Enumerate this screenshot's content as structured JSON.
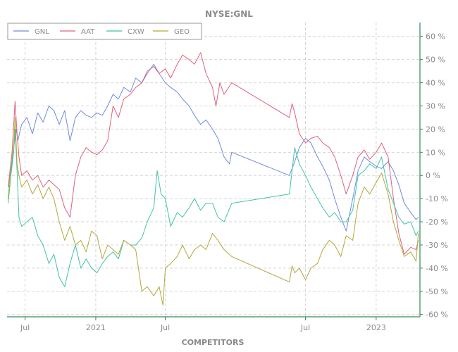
{
  "chart_data": {
    "type": "line",
    "title": "NYSE:GNL",
    "xlabel": "COMPETITORS",
    "ylabel": "",
    "ylim": [
      -61,
      66
    ],
    "y_unit": "%",
    "y_ticks": [
      60,
      50,
      40,
      30,
      20,
      10,
      0,
      -10,
      -20,
      -30,
      -40,
      -50,
      -60
    ],
    "y_tick_labels": [
      "60 %",
      "50 %",
      "40 %",
      "30 %",
      "20 %",
      "10 %",
      "0 %",
      "-10 %",
      "-20 %",
      "-30 %",
      "-40 %",
      "-50 %",
      "-60 %"
    ],
    "y_axis_side": "right",
    "x_range": [
      "2020-05-15",
      "2023-04-25"
    ],
    "x_ticks": [
      {
        "date": "2020-07-01",
        "label": "Jul"
      },
      {
        "date": "2021-01-01",
        "label": "2021"
      },
      {
        "date": "2021-07-01",
        "label": "Jul"
      },
      {
        "date": "2022-07-01",
        "label": "Jul"
      },
      {
        "date": "2023-01-01",
        "label": "2023"
      }
    ],
    "grid": true,
    "legend_position": "top-left",
    "series": [
      {
        "name": "GNL",
        "color": "#6f8ae0",
        "points": [
          [
            "2020-05-18",
            -5
          ],
          [
            "2020-05-25",
            2
          ],
          [
            "2020-06-01",
            12
          ],
          [
            "2020-06-08",
            20
          ],
          [
            "2020-06-12",
            15
          ],
          [
            "2020-06-22",
            22
          ],
          [
            "2020-07-06",
            25
          ],
          [
            "2020-07-20",
            18
          ],
          [
            "2020-08-03",
            27
          ],
          [
            "2020-08-17",
            23
          ],
          [
            "2020-09-01",
            30
          ],
          [
            "2020-09-14",
            28
          ],
          [
            "2020-09-28",
            22
          ],
          [
            "2020-10-12",
            28
          ],
          [
            "2020-10-26",
            15
          ],
          [
            "2020-11-09",
            25
          ],
          [
            "2020-11-23",
            28
          ],
          [
            "2020-12-07",
            26
          ],
          [
            "2020-12-21",
            25
          ],
          [
            "2021-01-04",
            27
          ],
          [
            "2021-01-18",
            26
          ],
          [
            "2021-02-01",
            30
          ],
          [
            "2021-02-15",
            35
          ],
          [
            "2021-03-01",
            33
          ],
          [
            "2021-03-15",
            38
          ],
          [
            "2021-04-01",
            36
          ],
          [
            "2021-04-15",
            42
          ],
          [
            "2021-05-01",
            40
          ],
          [
            "2021-05-15",
            44
          ],
          [
            "2021-06-01",
            48
          ],
          [
            "2021-06-15",
            44
          ],
          [
            "2021-07-01",
            40
          ],
          [
            "2021-07-15",
            38
          ],
          [
            "2021-08-01",
            36
          ],
          [
            "2021-08-15",
            33
          ],
          [
            "2021-09-01",
            30
          ],
          [
            "2021-09-15",
            26
          ],
          [
            "2021-10-01",
            22
          ],
          [
            "2021-10-15",
            24
          ],
          [
            "2021-11-01",
            20
          ],
          [
            "2021-11-15",
            16
          ],
          [
            "2021-12-01",
            8
          ],
          [
            "2021-12-15",
            5
          ],
          [
            "2021-12-21",
            10
          ],
          [
            "2022-05-20",
            0
          ],
          [
            "2022-06-01",
            5
          ],
          [
            "2022-06-15",
            12
          ],
          [
            "2022-07-01",
            16
          ],
          [
            "2022-07-15",
            14
          ],
          [
            "2022-08-01",
            8
          ],
          [
            "2022-08-15",
            4
          ],
          [
            "2022-09-01",
            -2
          ],
          [
            "2022-09-15",
            -10
          ],
          [
            "2022-10-01",
            -18
          ],
          [
            "2022-10-15",
            -24
          ],
          [
            "2022-11-01",
            -10
          ],
          [
            "2022-11-15",
            2
          ],
          [
            "2022-12-01",
            8
          ],
          [
            "2022-12-15",
            6
          ],
          [
            "2023-01-01",
            4
          ],
          [
            "2023-01-15",
            3
          ],
          [
            "2023-02-01",
            6
          ],
          [
            "2023-02-15",
            2
          ],
          [
            "2023-03-01",
            -4
          ],
          [
            "2023-03-15",
            -12
          ],
          [
            "2023-04-01",
            -16
          ],
          [
            "2023-04-15",
            -19
          ],
          [
            "2023-04-21",
            -18
          ]
        ]
      },
      {
        "name": "AAT",
        "color": "#e0607a",
        "points": [
          [
            "2020-05-18",
            -5
          ],
          [
            "2020-05-28",
            10
          ],
          [
            "2020-06-05",
            32
          ],
          [
            "2020-06-10",
            18
          ],
          [
            "2020-06-15",
            8
          ],
          [
            "2020-06-22",
            0
          ],
          [
            "2020-07-06",
            2
          ],
          [
            "2020-07-20",
            -2
          ],
          [
            "2020-08-03",
            0
          ],
          [
            "2020-08-17",
            -5
          ],
          [
            "2020-09-01",
            -2
          ],
          [
            "2020-09-14",
            -4
          ],
          [
            "2020-09-28",
            -6
          ],
          [
            "2020-10-12",
            -14
          ],
          [
            "2020-10-26",
            -18
          ],
          [
            "2020-11-09",
            0
          ],
          [
            "2020-11-23",
            8
          ],
          [
            "2020-12-07",
            12
          ],
          [
            "2020-12-21",
            10
          ],
          [
            "2021-01-04",
            9
          ],
          [
            "2021-01-18",
            11
          ],
          [
            "2021-02-01",
            15
          ],
          [
            "2021-02-15",
            30
          ],
          [
            "2021-03-01",
            25
          ],
          [
            "2021-03-15",
            33
          ],
          [
            "2021-04-01",
            35
          ],
          [
            "2021-04-15",
            38
          ],
          [
            "2021-05-01",
            40
          ],
          [
            "2021-05-15",
            45
          ],
          [
            "2021-06-01",
            47
          ],
          [
            "2021-06-15",
            44
          ],
          [
            "2021-07-01",
            46
          ],
          [
            "2021-07-15",
            42
          ],
          [
            "2021-08-01",
            48
          ],
          [
            "2021-08-15",
            52
          ],
          [
            "2021-09-01",
            50
          ],
          [
            "2021-09-15",
            48
          ],
          [
            "2021-10-01",
            53
          ],
          [
            "2021-10-15",
            44
          ],
          [
            "2021-11-01",
            38
          ],
          [
            "2021-11-10",
            30
          ],
          [
            "2021-11-20",
            40
          ],
          [
            "2021-12-01",
            35
          ],
          [
            "2021-12-21",
            40
          ],
          [
            "2022-05-20",
            25
          ],
          [
            "2022-05-27",
            31
          ],
          [
            "2022-06-03",
            27
          ],
          [
            "2022-06-15",
            18
          ],
          [
            "2022-07-01",
            14
          ],
          [
            "2022-07-15",
            16
          ],
          [
            "2022-08-01",
            17
          ],
          [
            "2022-08-15",
            14
          ],
          [
            "2022-09-01",
            12
          ],
          [
            "2022-09-15",
            8
          ],
          [
            "2022-10-01",
            0
          ],
          [
            "2022-10-15",
            -8
          ],
          [
            "2022-11-01",
            0
          ],
          [
            "2022-11-15",
            8
          ],
          [
            "2022-12-01",
            11
          ],
          [
            "2022-12-15",
            7
          ],
          [
            "2023-01-01",
            10
          ],
          [
            "2023-01-15",
            14
          ],
          [
            "2023-02-01",
            8
          ],
          [
            "2023-02-15",
            -10
          ],
          [
            "2023-03-01",
            -25
          ],
          [
            "2023-03-15",
            -34
          ],
          [
            "2023-04-01",
            -31
          ],
          [
            "2023-04-15",
            -32
          ],
          [
            "2023-04-21",
            -28
          ]
        ]
      },
      {
        "name": "CXW",
        "color": "#3fc4a4",
        "points": [
          [
            "2020-05-18",
            -12
          ],
          [
            "2020-05-25",
            0
          ],
          [
            "2020-06-01",
            10
          ],
          [
            "2020-06-05",
            20
          ],
          [
            "2020-06-10",
            2
          ],
          [
            "2020-06-15",
            -18
          ],
          [
            "2020-06-22",
            -22
          ],
          [
            "2020-07-06",
            -20
          ],
          [
            "2020-07-20",
            -18
          ],
          [
            "2020-08-03",
            -26
          ],
          [
            "2020-08-17",
            -30
          ],
          [
            "2020-09-01",
            -38
          ],
          [
            "2020-09-14",
            -34
          ],
          [
            "2020-09-28",
            -44
          ],
          [
            "2020-10-12",
            -48
          ],
          [
            "2020-10-26",
            -38
          ],
          [
            "2020-11-09",
            -30
          ],
          [
            "2020-11-23",
            -40
          ],
          [
            "2020-12-07",
            -36
          ],
          [
            "2020-12-21",
            -40
          ],
          [
            "2021-01-04",
            -42
          ],
          [
            "2021-01-18",
            -38
          ],
          [
            "2021-02-01",
            -35
          ],
          [
            "2021-02-15",
            -33
          ],
          [
            "2021-03-01",
            -36
          ],
          [
            "2021-03-15",
            -28
          ],
          [
            "2021-04-01",
            -30
          ],
          [
            "2021-04-15",
            -30
          ],
          [
            "2021-05-01",
            -27
          ],
          [
            "2021-05-15",
            -20
          ],
          [
            "2021-06-01",
            -14
          ],
          [
            "2021-06-10",
            2
          ],
          [
            "2021-06-20",
            -8
          ],
          [
            "2021-07-01",
            -10
          ],
          [
            "2021-07-15",
            -22
          ],
          [
            "2021-08-01",
            -16
          ],
          [
            "2021-08-15",
            -18
          ],
          [
            "2021-09-01",
            -14
          ],
          [
            "2021-09-15",
            -10
          ],
          [
            "2021-10-01",
            -15
          ],
          [
            "2021-10-15",
            -12
          ],
          [
            "2021-11-01",
            -12
          ],
          [
            "2021-11-15",
            -18
          ],
          [
            "2021-12-01",
            -20
          ],
          [
            "2021-12-21",
            -12
          ],
          [
            "2022-05-20",
            -8
          ],
          [
            "2022-05-27",
            2
          ],
          [
            "2022-06-03",
            12
          ],
          [
            "2022-06-15",
            5
          ],
          [
            "2022-07-01",
            0
          ],
          [
            "2022-07-15",
            -5
          ],
          [
            "2022-08-01",
            -10
          ],
          [
            "2022-08-15",
            -14
          ],
          [
            "2022-09-01",
            -18
          ],
          [
            "2022-09-15",
            -16
          ],
          [
            "2022-10-01",
            -20
          ],
          [
            "2022-10-15",
            -20
          ],
          [
            "2022-11-01",
            -15
          ],
          [
            "2022-11-15",
            0
          ],
          [
            "2022-12-01",
            2
          ],
          [
            "2022-12-15",
            5
          ],
          [
            "2023-01-01",
            3
          ],
          [
            "2023-01-15",
            8
          ],
          [
            "2023-02-01",
            -6
          ],
          [
            "2023-02-15",
            -12
          ],
          [
            "2023-03-01",
            -18
          ],
          [
            "2023-03-15",
            -21
          ],
          [
            "2023-04-01",
            -20
          ],
          [
            "2023-04-15",
            -26
          ],
          [
            "2023-04-21",
            -24
          ]
        ]
      },
      {
        "name": "GEO",
        "color": "#b3a737",
        "points": [
          [
            "2020-05-18",
            -10
          ],
          [
            "2020-05-25",
            5
          ],
          [
            "2020-06-01",
            12
          ],
          [
            "2020-06-05",
            25
          ],
          [
            "2020-06-10",
            5
          ],
          [
            "2020-06-15",
            0
          ],
          [
            "2020-06-22",
            -5
          ],
          [
            "2020-07-06",
            -2
          ],
          [
            "2020-07-20",
            -8
          ],
          [
            "2020-08-03",
            -4
          ],
          [
            "2020-08-17",
            -10
          ],
          [
            "2020-09-01",
            -5
          ],
          [
            "2020-09-14",
            -10
          ],
          [
            "2020-09-28",
            -20
          ],
          [
            "2020-10-12",
            -28
          ],
          [
            "2020-10-26",
            -22
          ],
          [
            "2020-11-09",
            -30
          ],
          [
            "2020-11-23",
            -28
          ],
          [
            "2020-12-07",
            -33
          ],
          [
            "2020-12-21",
            -24
          ],
          [
            "2021-01-04",
            -26
          ],
          [
            "2021-01-18",
            -36
          ],
          [
            "2021-02-01",
            -30
          ],
          [
            "2021-02-15",
            -32
          ],
          [
            "2021-03-01",
            -34
          ],
          [
            "2021-03-15",
            -28
          ],
          [
            "2021-04-01",
            -30
          ],
          [
            "2021-04-15",
            -32
          ],
          [
            "2021-05-01",
            -50
          ],
          [
            "2021-05-15",
            -48
          ],
          [
            "2021-06-01",
            -52
          ],
          [
            "2021-06-15",
            -48
          ],
          [
            "2021-06-25",
            -56
          ],
          [
            "2021-07-01",
            -40
          ],
          [
            "2021-07-15",
            -38
          ],
          [
            "2021-08-01",
            -35
          ],
          [
            "2021-08-15",
            -30
          ],
          [
            "2021-09-01",
            -36
          ],
          [
            "2021-09-15",
            -32
          ],
          [
            "2021-10-01",
            -30
          ],
          [
            "2021-10-15",
            -32
          ],
          [
            "2021-11-01",
            -25
          ],
          [
            "2021-11-15",
            -28
          ],
          [
            "2021-12-01",
            -32
          ],
          [
            "2021-12-21",
            -35
          ],
          [
            "2022-05-20",
            -46
          ],
          [
            "2022-05-27",
            -39
          ],
          [
            "2022-06-03",
            -42
          ],
          [
            "2022-06-15",
            -40
          ],
          [
            "2022-07-01",
            -45
          ],
          [
            "2022-07-15",
            -40
          ],
          [
            "2022-08-01",
            -38
          ],
          [
            "2022-08-15",
            -32
          ],
          [
            "2022-09-01",
            -28
          ],
          [
            "2022-09-15",
            -30
          ],
          [
            "2022-10-01",
            -35
          ],
          [
            "2022-10-15",
            -26
          ],
          [
            "2022-11-01",
            -28
          ],
          [
            "2022-11-15",
            -12
          ],
          [
            "2022-12-01",
            -5
          ],
          [
            "2022-12-15",
            -8
          ],
          [
            "2023-01-01",
            -3
          ],
          [
            "2023-01-15",
            1
          ],
          [
            "2023-02-01",
            -8
          ],
          [
            "2023-02-15",
            -20
          ],
          [
            "2023-03-01",
            -28
          ],
          [
            "2023-03-15",
            -35
          ],
          [
            "2023-04-01",
            -33
          ],
          [
            "2023-04-15",
            -37
          ],
          [
            "2023-04-21",
            -25
          ]
        ]
      }
    ]
  }
}
